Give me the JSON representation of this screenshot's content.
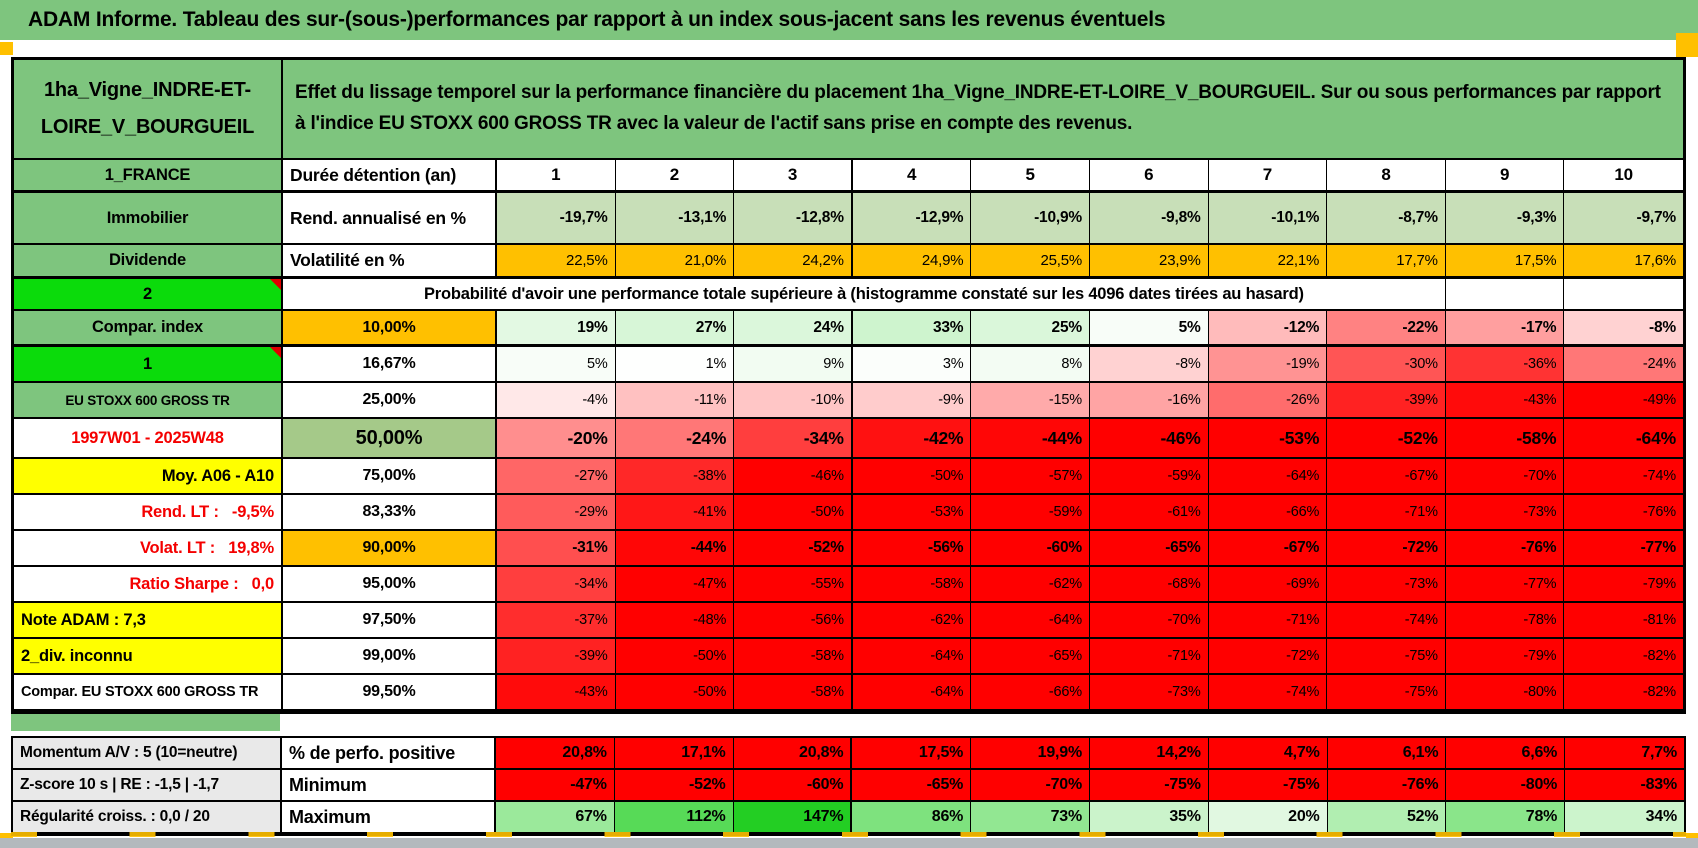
{
  "title": "ADAM Informe. Tableau des sur-(sous-)performances par rapport à un index sous-jacent sans les revenus éventuels",
  "header": {
    "asset": "1ha_Vigne_INDRE-ET-LOIRE_V_BOURGUEIL",
    "description": "Effet du lissage temporel sur la performance financière du placement 1ha_Vigne_INDRE-ET-LOIRE_V_BOURGUEIL. Sur ou sous performances par rapport à l'indice EU STOXX 600 GROSS TR avec la valeur de l'actif sans prise en compte des revenus."
  },
  "colors": {
    "header_green": "#7EC57E",
    "bright_green": "#0BDB0B",
    "orange": "#FFC000",
    "yellow": "#FFFF00",
    "sage": "#C8DFB8",
    "mid_green": "#A5C989",
    "full_red": "#FF0000",
    "gray_label": "#E9E9E9",
    "red_text": "#F40000"
  },
  "duree_row": {
    "label": "1_FRANCE",
    "metric": "Durée détention (an)",
    "cols": [
      "1",
      "2",
      "3",
      "4",
      "5",
      "6",
      "7",
      "8",
      "9",
      "10"
    ]
  },
  "rend_row": {
    "label": "Immobilier",
    "metric": "Rend. annualisé en %",
    "values": [
      "-19,7%",
      "-13,1%",
      "-12,8%",
      "-12,9%",
      "-10,9%",
      "-9,8%",
      "-10,1%",
      "-8,7%",
      "-9,3%",
      "-9,7%"
    ]
  },
  "volat_row": {
    "label": "Dividende",
    "metric": "Volatilité en %",
    "values": [
      "22,5%",
      "21,0%",
      "24,2%",
      "24,9%",
      "25,5%",
      "23,9%",
      "22,1%",
      "17,7%",
      "17,5%",
      "17,6%"
    ]
  },
  "prob_header": {
    "label": "2",
    "text": "Probabilité d'avoir une performance totale supérieure à (histogramme constaté sur les 4096 dates tirées au hasard)"
  },
  "prob_rows": [
    {
      "label": "Compar. index",
      "label_style": "green",
      "prob": "10,00%",
      "prob_style": "orange",
      "tier": "bold",
      "values": [
        "19%",
        "27%",
        "24%",
        "33%",
        "25%",
        "5%",
        "-12%",
        "-22%",
        "-17%",
        "-8%"
      ]
    },
    {
      "label": "1",
      "label_style": "bright",
      "prob": "16,67%",
      "prob_style": "white",
      "tier": "normal",
      "values": [
        "5%",
        "1%",
        "9%",
        "3%",
        "8%",
        "-8%",
        "-19%",
        "-30%",
        "-36%",
        "-24%"
      ]
    },
    {
      "label": "EU STOXX 600 GROSS TR",
      "label_style": "green-small",
      "prob": "25,00%",
      "prob_style": "white",
      "tier": "normal",
      "values": [
        "-4%",
        "-11%",
        "-10%",
        "-9%",
        "-15%",
        "-16%",
        "-26%",
        "-39%",
        "-43%",
        "-49%"
      ]
    },
    {
      "label": "1997W01 - 2025W48",
      "label_style": "red-center",
      "prob": "50,00%",
      "prob_style": "sage-big",
      "tier": "bold-big",
      "values": [
        "-20%",
        "-24%",
        "-34%",
        "-42%",
        "-44%",
        "-46%",
        "-53%",
        "-52%",
        "-58%",
        "-64%"
      ]
    },
    {
      "label": "Moy. A06 - A10",
      "label_style": "yellow-right",
      "prob": "75,00%",
      "prob_style": "white",
      "tier": "normal",
      "values": [
        "-27%",
        "-38%",
        "-46%",
        "-50%",
        "-57%",
        "-59%",
        "-64%",
        "-67%",
        "-70%",
        "-74%"
      ]
    },
    {
      "label": "Rend. LT :   -9,5%",
      "label_style": "red-right",
      "prob": "83,33%",
      "prob_style": "white",
      "tier": "normal",
      "values": [
        "-29%",
        "-41%",
        "-50%",
        "-53%",
        "-59%",
        "-61%",
        "-66%",
        "-71%",
        "-73%",
        "-76%"
      ]
    },
    {
      "label": "Volat. LT :   19,8%",
      "label_style": "red-right",
      "prob": "90,00%",
      "prob_style": "orange",
      "tier": "bold",
      "values": [
        "-31%",
        "-44%",
        "-52%",
        "-56%",
        "-60%",
        "-65%",
        "-67%",
        "-72%",
        "-76%",
        "-77%"
      ]
    },
    {
      "label": "Ratio Sharpe :   0,0",
      "label_style": "red-right",
      "prob": "95,00%",
      "prob_style": "white",
      "tier": "normal",
      "values": [
        "-34%",
        "-47%",
        "-55%",
        "-58%",
        "-62%",
        "-68%",
        "-69%",
        "-73%",
        "-77%",
        "-79%"
      ]
    },
    {
      "label": "Note ADAM : 7,3",
      "label_style": "yellow-left",
      "prob": "97,50%",
      "prob_style": "white",
      "tier": "normal",
      "values": [
        "-37%",
        "-48%",
        "-56%",
        "-62%",
        "-64%",
        "-70%",
        "-71%",
        "-74%",
        "-78%",
        "-81%"
      ]
    },
    {
      "label": "2_div. inconnu",
      "label_style": "yellow-left",
      "prob": "99,00%",
      "prob_style": "white",
      "tier": "normal",
      "values": [
        "-39%",
        "-50%",
        "-58%",
        "-64%",
        "-65%",
        "-71%",
        "-72%",
        "-75%",
        "-79%",
        "-82%"
      ]
    },
    {
      "label": "Compar. EU STOXX 600 GROSS TR",
      "label_style": "white-left",
      "prob": "99,50%",
      "prob_style": "white",
      "tier": "normal",
      "values": [
        "-43%",
        "-50%",
        "-58%",
        "-64%",
        "-66%",
        "-73%",
        "-74%",
        "-75%",
        "-80%",
        "-82%"
      ]
    }
  ],
  "bottom_rows": [
    {
      "label": "Momentum A/V : 5 (10=neutre)",
      "metric": "% de perfo. positive",
      "bg": "#FF0000",
      "values": [
        "20,8%",
        "17,1%",
        "20,8%",
        "17,5%",
        "19,9%",
        "14,2%",
        "4,7%",
        "6,1%",
        "6,6%",
        "7,7%"
      ]
    },
    {
      "label": "Z-score 10 s | RE : -1,5 | -1,7",
      "metric": "Minimum",
      "bg": "value",
      "values": [
        "-47%",
        "-52%",
        "-60%",
        "-65%",
        "-70%",
        "-75%",
        "-75%",
        "-76%",
        "-80%",
        "-83%"
      ]
    },
    {
      "label": "Régularité croiss. : 0,0 / 20",
      "metric": "Maximum",
      "bg": "value",
      "values": [
        "67%",
        "112%",
        "147%",
        "86%",
        "73%",
        "35%",
        "20%",
        "52%",
        "78%",
        "34%"
      ]
    }
  ]
}
